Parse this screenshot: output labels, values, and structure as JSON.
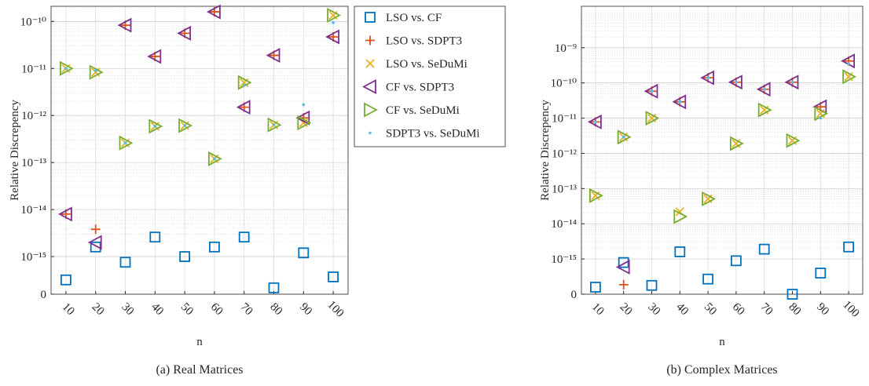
{
  "chart_data": [
    {
      "type": "scatter",
      "caption": "(a) Real Matrices",
      "xlabel": "n",
      "ylabel": "Relative Discrepency",
      "categories": [
        "10",
        "20",
        "30",
        "40",
        "50",
        "60",
        "70",
        "80",
        "90",
        "100"
      ],
      "yscale": "symlog",
      "linthresh": 1e-15,
      "linscale": 0.8,
      "ylim": [
        0,
        2.1e-10
      ],
      "yticks": [
        0,
        {
          "value": 1e-15,
          "label": "10⁻¹⁵"
        },
        {
          "value": 1e-14,
          "label": "10⁻¹⁴"
        },
        {
          "value": 1e-13,
          "label": "10⁻¹³"
        },
        {
          "value": 1e-12,
          "label": "10⁻¹²"
        },
        {
          "value": 1e-11,
          "label": "10⁻¹¹"
        },
        {
          "value": 1e-10,
          "label": "10⁻¹⁰"
        }
      ],
      "grid": true,
      "minor_grid": true,
      "legend": "outside-right",
      "series": [
        {
          "name": "LSO vs. CF",
          "color": "#0072BD",
          "marker": "square",
          "values": [
            3.8e-16,
            1.6e-15,
            8.5e-16,
            2.6e-15,
            1e-15,
            1.6e-15,
            2.6e-15,
            1.7e-16,
            1.2e-15,
            4.6e-16
          ]
        },
        {
          "name": "LSO vs. SDPT3",
          "color": "#D95319",
          "marker": "plus",
          "values": [
            8e-15,
            3.8e-15,
            8.3e-11,
            1.8e-11,
            5.6e-11,
            1.6e-10,
            1.5e-12,
            1.9e-11,
            8.9e-13,
            4.7e-11
          ]
        },
        {
          "name": "LSO vs. SeDuMi",
          "color": "#EDB120",
          "marker": "x",
          "values": [
            1e-11,
            8.3e-12,
            2.6e-13,
            5.9e-13,
            6.1e-13,
            1.2e-13,
            5e-12,
            6.3e-13,
            7e-13,
            1.35e-10
          ]
        },
        {
          "name": "CF vs. SDPT3",
          "color": "#7E2F8E",
          "marker": "triangle-left",
          "values": [
            8e-15,
            2e-15,
            8.3e-11,
            1.8e-11,
            5.6e-11,
            1.6e-10,
            1.5e-12,
            1.9e-11,
            8.9e-13,
            4.7e-11
          ]
        },
        {
          "name": "CF vs. SeDuMi",
          "color": "#77AC30",
          "marker": "triangle-right",
          "values": [
            1e-11,
            8.3e-12,
            2.6e-13,
            5.9e-13,
            6.1e-13,
            1.2e-13,
            5e-12,
            6.3e-13,
            7e-13,
            1.35e-10
          ]
        },
        {
          "name": "SDPT3 vs. SeDuMi",
          "color": "#4DBEEE",
          "marker": "dot",
          "values": [
            1e-11,
            9e-12,
            2.6e-13,
            5.9e-13,
            6.1e-13,
            1.2e-13,
            4.4e-12,
            6.3e-13,
            1.7e-12,
            9.4e-11
          ]
        }
      ]
    },
    {
      "type": "scatter",
      "caption": "(b) Complex Matrices",
      "xlabel": "n",
      "ylabel": "Relative Discrepency",
      "categories": [
        "10",
        "20",
        "30",
        "40",
        "50",
        "60",
        "70",
        "80",
        "90",
        "100"
      ],
      "yscale": "symlog",
      "linthresh": 1e-15,
      "linscale": 1.0,
      "ylim": [
        0,
        1.5e-08
      ],
      "yticks": [
        0,
        {
          "value": 1e-15,
          "label": "10⁻¹⁵"
        },
        {
          "value": 1e-14,
          "label": "10⁻¹⁴"
        },
        {
          "value": 1e-13,
          "label": "10⁻¹³"
        },
        {
          "value": 1e-12,
          "label": "10⁻¹²"
        },
        {
          "value": 1e-11,
          "label": "10⁻¹¹"
        },
        {
          "value": 1e-10,
          "label": "10⁻¹⁰"
        },
        {
          "value": 1e-09,
          "label": "10⁻⁹"
        }
      ],
      "grid": true,
      "minor_grid": true,
      "series": [
        {
          "name": "LSO vs. CF",
          "color": "#0072BD",
          "marker": "square",
          "values": [
            2e-16,
            9e-16,
            2.5e-16,
            1.6e-15,
            4.3e-16,
            9.5e-16,
            1.9e-15,
            0,
            6e-16,
            2.2e-15
          ]
        },
        {
          "name": "LSO vs. SDPT3",
          "color": "#D95319",
          "marker": "plus",
          "values": [
            7.8e-12,
            2.7e-16,
            5.8e-11,
            2.9e-11,
            1.4e-10,
            1.05e-10,
            6.6e-11,
            1.05e-10,
            2.1e-11,
            4.2e-10
          ]
        },
        {
          "name": "LSO vs. SeDuMi",
          "color": "#EDB120",
          "marker": "x",
          "values": [
            6.3e-14,
            2.9e-12,
            1e-11,
            2.2e-14,
            5.1e-14,
            1.9e-12,
            1.7e-11,
            2.3e-12,
            1.35e-11,
            1.5e-10
          ]
        },
        {
          "name": "CF vs. SDPT3",
          "color": "#7E2F8E",
          "marker": "triangle-left",
          "values": [
            7.8e-12,
            7.7e-16,
            5.8e-11,
            2.9e-11,
            1.4e-10,
            1.05e-10,
            6.6e-11,
            1.05e-10,
            2.1e-11,
            4.2e-10
          ]
        },
        {
          "name": "CF vs. SeDuMi",
          "color": "#77AC30",
          "marker": "triangle-right",
          "values": [
            6.3e-14,
            2.9e-12,
            1e-11,
            1.6e-14,
            5.1e-14,
            1.9e-12,
            1.7e-11,
            2.3e-12,
            1.35e-11,
            1.5e-10
          ]
        },
        {
          "name": "SDPT3 vs. SeDuMi",
          "color": "#4DBEEE",
          "marker": "dot",
          "values": [
            7.8e-12,
            2.9e-12,
            5.8e-11,
            2.9e-11,
            1.4e-10,
            1.05e-10,
            6.6e-11,
            1.05e-10,
            1e-11,
            3.5e-10
          ]
        }
      ]
    }
  ]
}
